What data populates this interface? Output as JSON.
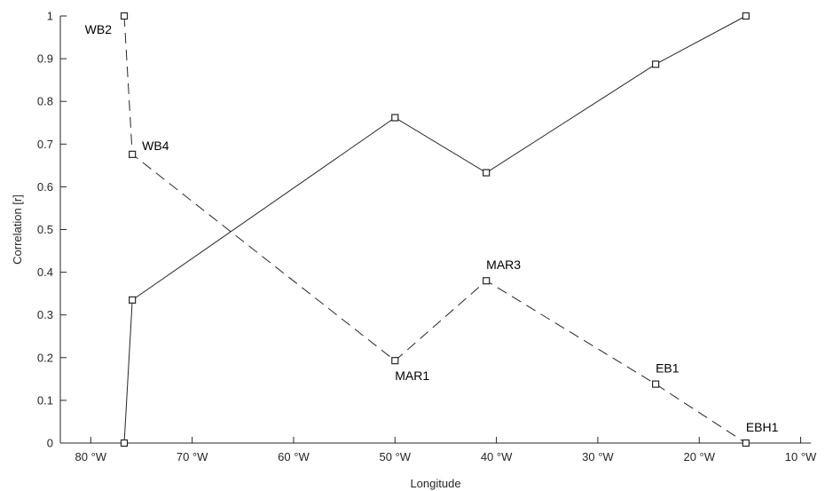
{
  "chart_data": {
    "type": "line",
    "title": "",
    "xlabel": "Longitude",
    "ylabel": "Correlation [r]",
    "xlim": [
      -83,
      -9
    ],
    "ylim": [
      0,
      1
    ],
    "x_ticks": [
      {
        "value": -80,
        "label": "80 °W"
      },
      {
        "value": -70,
        "label": "70 °W"
      },
      {
        "value": -60,
        "label": "60 °W"
      },
      {
        "value": -50,
        "label": "50 °W"
      },
      {
        "value": -40,
        "label": "40 °W"
      },
      {
        "value": -30,
        "label": "30 °W"
      },
      {
        "value": -20,
        "label": "20 °W"
      },
      {
        "value": -10,
        "label": "10 °W"
      }
    ],
    "y_ticks": [
      {
        "value": 0,
        "label": "0"
      },
      {
        "value": 0.1,
        "label": "0.1"
      },
      {
        "value": 0.2,
        "label": "0.2"
      },
      {
        "value": 0.3,
        "label": "0.3"
      },
      {
        "value": 0.4,
        "label": "0.4"
      },
      {
        "value": 0.5,
        "label": "0.5"
      },
      {
        "value": 0.6,
        "label": "0.6"
      },
      {
        "value": 0.7,
        "label": "0.7"
      },
      {
        "value": 0.8,
        "label": "0.8"
      },
      {
        "value": 0.9,
        "label": "0.9"
      },
      {
        "value": 1,
        "label": "1"
      }
    ],
    "grid": false,
    "legend": "none",
    "series": [
      {
        "line_style": "solid",
        "marker": "square",
        "color": "#262626",
        "points": [
          {
            "x": -76.7,
            "y": 0.0
          },
          {
            "x": -75.9,
            "y": 0.335
          },
          {
            "x": -50.0,
            "y": 0.762
          },
          {
            "x": -41.0,
            "y": 0.633
          },
          {
            "x": -24.3,
            "y": 0.887
          },
          {
            "x": -15.4,
            "y": 1.0
          }
        ]
      },
      {
        "line_style": "dashed",
        "marker": "square",
        "color": "#262626",
        "points": [
          {
            "x": -76.7,
            "y": 1.0,
            "label": "WB2",
            "label_pos": "left"
          },
          {
            "x": -75.9,
            "y": 0.676,
            "label": "WB4",
            "label_pos": "upper-right"
          },
          {
            "x": -50.0,
            "y": 0.193,
            "label": "MAR1",
            "label_pos": "below"
          },
          {
            "x": -41.0,
            "y": 0.38,
            "label": "MAR3",
            "label_pos": "above"
          },
          {
            "x": -24.3,
            "y": 0.138,
            "label": "EB1",
            "label_pos": "above"
          },
          {
            "x": -15.4,
            "y": 0.0,
            "label": "EBH1",
            "label_pos": "above"
          }
        ]
      }
    ]
  }
}
